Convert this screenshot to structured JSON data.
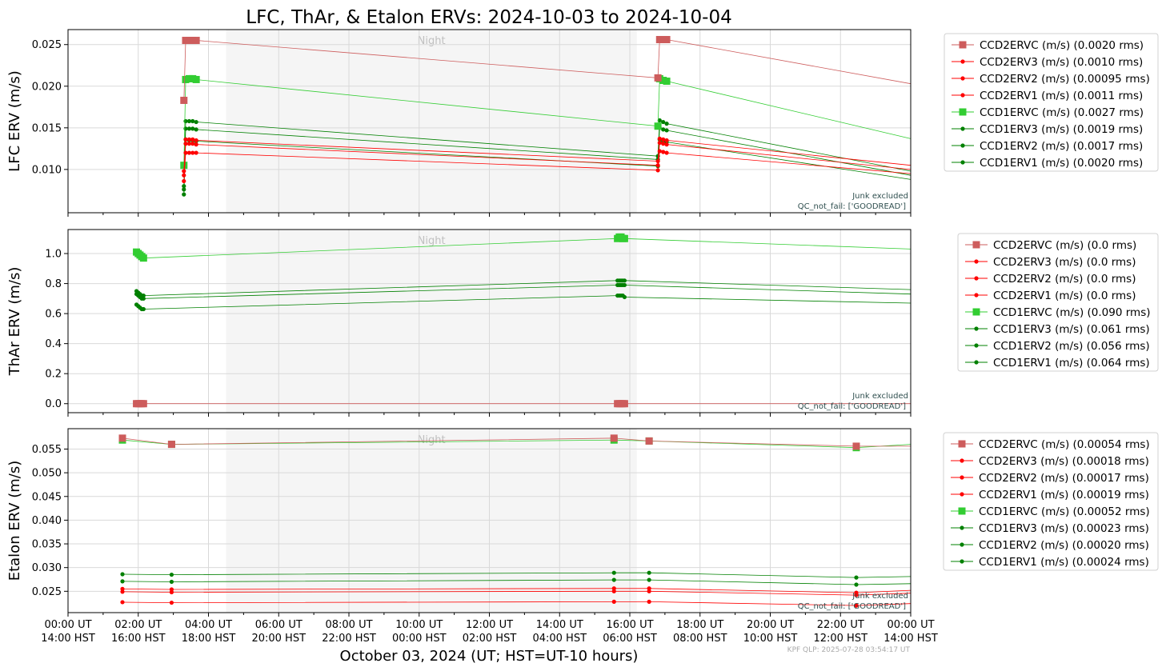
{
  "figure": {
    "title": "LFC, ThAr, & Etalon ERVs: 2024-10-03 to 2024-10-04",
    "xlabel": "October 03, 2024 (UT; HST=UT-10 hours)",
    "footer": "KPF QLP: 2025-07-28 03:54:17 UT",
    "night_label": "Night",
    "notes": [
      "Junk excluded",
      "QC_not_fail: ['GOODREAD']"
    ],
    "x_ticks": [
      {
        "ut": "00:00 UT",
        "hst": "14:00 HST"
      },
      {
        "ut": "02:00 UT",
        "hst": "16:00 HST"
      },
      {
        "ut": "04:00 UT",
        "hst": "18:00 HST"
      },
      {
        "ut": "06:00 UT",
        "hst": "20:00 HST"
      },
      {
        "ut": "08:00 UT",
        "hst": "22:00 HST"
      },
      {
        "ut": "10:00 UT",
        "hst": "00:00 HST"
      },
      {
        "ut": "12:00 UT",
        "hst": "02:00 HST"
      },
      {
        "ut": "14:00 UT",
        "hst": "04:00 HST"
      },
      {
        "ut": "16:00 UT",
        "hst": "06:00 HST"
      },
      {
        "ut": "18:00 UT",
        "hst": "08:00 HST"
      },
      {
        "ut": "20:00 UT",
        "hst": "10:00 HST"
      },
      {
        "ut": "22:00 UT",
        "hst": "12:00 HST"
      },
      {
        "ut": "00:00 UT",
        "hst": "14:00 HST"
      }
    ],
    "colors": {
      "ccd2": "#cd5c5c",
      "ccd2_dot": "#ff0000",
      "ccd1": "#32cd32",
      "ccd1_dot": "#008000",
      "night": "#f5f5f5",
      "grid": "#d9d9d9",
      "note": "#2f4f4f"
    }
  },
  "chart_data": [
    {
      "type": "line",
      "ylabel": "LFC ERV (m/s)",
      "xlim_hours_ut": [
        0,
        24
      ],
      "ylim": [
        0.0048,
        0.0268
      ],
      "y_ticks": [
        "0.010",
        "0.015",
        "0.020",
        "0.025"
      ],
      "y_tick_values": [
        0.01,
        0.015,
        0.02,
        0.025
      ],
      "night_hours_ut": [
        4.5,
        16.2
      ],
      "series": [
        {
          "name": "CCD2ERVC (m/s) (0.0020 rms)",
          "marker": "square",
          "x": [
            3.3,
            3.35,
            3.45,
            3.55,
            3.65,
            16.8,
            16.85,
            16.95,
            17.05,
            24.0
          ],
          "y": [
            0.0183,
            0.0255,
            0.0255,
            0.0255,
            0.0255,
            0.021,
            0.0256,
            0.0256,
            0.0256,
            0.0203
          ]
        },
        {
          "name": "CCD2ERV3 (m/s) (0.0010 rms)",
          "marker": "dot",
          "x": [
            3.3,
            3.35,
            3.45,
            3.55,
            3.65,
            16.8,
            16.85,
            16.95,
            17.05,
            24.0
          ],
          "y": [
            0.0098,
            0.0136,
            0.0136,
            0.0136,
            0.0135,
            0.011,
            0.0137,
            0.0136,
            0.0135,
            0.0105
          ]
        },
        {
          "name": "CCD2ERV2 (m/s) (0.00095 rms)",
          "marker": "dot",
          "x": [
            3.3,
            3.35,
            3.45,
            3.55,
            3.65,
            16.8,
            16.85,
            16.95,
            17.05,
            24.0
          ],
          "y": [
            0.0093,
            0.0131,
            0.0131,
            0.0131,
            0.013,
            0.0105,
            0.0132,
            0.0131,
            0.013,
            0.01
          ]
        },
        {
          "name": "CCD2ERV1 (m/s) (0.0011 rms)",
          "marker": "dot",
          "x": [
            3.3,
            3.35,
            3.45,
            3.55,
            3.65,
            16.8,
            16.85,
            16.95,
            17.05,
            24.0
          ],
          "y": [
            0.0086,
            0.012,
            0.012,
            0.012,
            0.012,
            0.0099,
            0.0122,
            0.0121,
            0.012,
            0.0095
          ]
        },
        {
          "name": "CCD1ERVC (m/s) (0.0027 rms)",
          "marker": "square",
          "x": [
            3.3,
            3.35,
            3.45,
            3.55,
            3.65,
            16.8,
            16.85,
            16.95,
            17.05,
            24.0
          ],
          "y": [
            0.0105,
            0.0208,
            0.0209,
            0.0209,
            0.0208,
            0.0152,
            0.0209,
            0.0207,
            0.0206,
            0.0137
          ]
        },
        {
          "name": "CCD1ERV3 (m/s) (0.0019 rms)",
          "marker": "dot",
          "x": [
            3.3,
            3.35,
            3.45,
            3.55,
            3.65,
            16.8,
            16.85,
            16.95,
            17.05,
            24.0
          ],
          "y": [
            0.008,
            0.0158,
            0.0158,
            0.0158,
            0.0157,
            0.0116,
            0.0159,
            0.0157,
            0.0155,
            0.0098
          ]
        },
        {
          "name": "CCD1ERV2 (m/s) (0.0017 rms)",
          "marker": "dot",
          "x": [
            3.3,
            3.35,
            3.45,
            3.55,
            3.65,
            16.8,
            16.85,
            16.95,
            17.05,
            24.0
          ],
          "y": [
            0.0076,
            0.0149,
            0.0149,
            0.0149,
            0.0148,
            0.0112,
            0.015,
            0.0148,
            0.0147,
            0.0093
          ]
        },
        {
          "name": "CCD1ERV1 (m/s) (0.0020 rms)",
          "marker": "dot",
          "x": [
            3.3,
            3.35,
            3.45,
            3.55,
            3.65,
            16.8,
            16.85,
            16.95,
            17.05,
            24.0
          ],
          "y": [
            0.007,
            0.0136,
            0.0135,
            0.0135,
            0.0134,
            0.0104,
            0.0136,
            0.0134,
            0.0133,
            0.0088
          ]
        }
      ]
    },
    {
      "type": "line",
      "ylabel": "ThAr ERV (m/s)",
      "xlim_hours_ut": [
        0,
        24
      ],
      "ylim": [
        -0.06,
        1.16
      ],
      "y_ticks": [
        "0.0",
        "0.2",
        "0.4",
        "0.6",
        "0.8",
        "1.0"
      ],
      "y_tick_values": [
        0.0,
        0.2,
        0.4,
        0.6,
        0.8,
        1.0
      ],
      "night_hours_ut": [
        4.5,
        16.2
      ],
      "series": [
        {
          "name": "CCD2ERVC (m/s) (0.0 rms)",
          "marker": "square",
          "x": [
            1.95,
            2.0,
            2.05,
            2.1,
            2.15,
            15.65,
            15.7,
            15.75,
            15.8,
            15.85,
            24.0
          ],
          "y": [
            0.0,
            0.0,
            0.0,
            0.0,
            0.0,
            0.0,
            0.0,
            0.0,
            0.0,
            0.0,
            0.0
          ]
        },
        {
          "name": "CCD2ERV3 (m/s) (0.0 rms)",
          "marker": "dot",
          "x": [],
          "y": []
        },
        {
          "name": "CCD2ERV2 (m/s) (0.0 rms)",
          "marker": "dot",
          "x": [],
          "y": []
        },
        {
          "name": "CCD2ERV1 (m/s) (0.0 rms)",
          "marker": "dot",
          "x": [],
          "y": []
        },
        {
          "name": "CCD1ERVC (m/s) (0.090 rms)",
          "marker": "square",
          "x": [
            1.95,
            2.0,
            2.05,
            2.1,
            2.15,
            15.65,
            15.7,
            15.75,
            15.8,
            15.85,
            24.0
          ],
          "y": [
            1.01,
            1.0,
            0.99,
            0.98,
            0.97,
            1.1,
            1.11,
            1.11,
            1.1,
            1.1,
            1.03
          ]
        },
        {
          "name": "CCD1ERV3 (m/s) (0.061 rms)",
          "marker": "dot",
          "x": [
            1.95,
            2.0,
            2.05,
            2.1,
            2.15,
            15.65,
            15.7,
            15.75,
            15.8,
            15.85,
            24.0
          ],
          "y": [
            0.75,
            0.74,
            0.73,
            0.72,
            0.72,
            0.82,
            0.82,
            0.82,
            0.82,
            0.82,
            0.76
          ]
        },
        {
          "name": "CCD1ERV2 (m/s) (0.056 rms)",
          "marker": "dot",
          "x": [
            1.95,
            2.0,
            2.05,
            2.1,
            2.15,
            15.65,
            15.7,
            15.75,
            15.8,
            15.85,
            24.0
          ],
          "y": [
            0.73,
            0.72,
            0.71,
            0.7,
            0.7,
            0.79,
            0.79,
            0.79,
            0.79,
            0.79,
            0.73
          ]
        },
        {
          "name": "CCD1ERV1 (m/s) (0.064 rms)",
          "marker": "dot",
          "x": [
            1.95,
            2.0,
            2.05,
            2.1,
            2.15,
            15.65,
            15.7,
            15.75,
            15.8,
            15.85,
            24.0
          ],
          "y": [
            0.66,
            0.65,
            0.64,
            0.63,
            0.63,
            0.72,
            0.72,
            0.72,
            0.72,
            0.71,
            0.67
          ]
        }
      ]
    },
    {
      "type": "line",
      "ylabel": "Etalon ERV (m/s)",
      "xlim_hours_ut": [
        0,
        24
      ],
      "ylim": [
        0.0205,
        0.0593
      ],
      "y_ticks": [
        "0.025",
        "0.030",
        "0.035",
        "0.040",
        "0.045",
        "0.050",
        "0.055"
      ],
      "y_tick_values": [
        0.025,
        0.03,
        0.035,
        0.04,
        0.045,
        0.05,
        0.055
      ],
      "night_hours_ut": [
        4.5,
        16.2
      ],
      "series": [
        {
          "name": "CCD2ERVC (m/s) (0.00054 rms)",
          "marker": "square",
          "x": [
            1.55,
            2.95,
            15.55,
            16.55,
            22.45,
            24.0
          ],
          "y": [
            0.0573,
            0.056,
            0.0573,
            0.0567,
            0.0556,
            0.0556
          ]
        },
        {
          "name": "CCD2ERV3 (m/s) (0.00018 rms)",
          "marker": "dot",
          "x": [
            1.55,
            2.95,
            15.55,
            16.55,
            22.45,
            24.0
          ],
          "y": [
            0.0255,
            0.0254,
            0.0256,
            0.0256,
            0.0247,
            0.0252
          ]
        },
        {
          "name": "CCD2ERV2 (m/s) (0.00017 rms)",
          "marker": "dot",
          "x": [
            1.55,
            2.95,
            15.55,
            16.55,
            22.45,
            24.0
          ],
          "y": [
            0.0249,
            0.0248,
            0.025,
            0.025,
            0.0242,
            0.0246
          ]
        },
        {
          "name": "CCD2ERV1 (m/s) (0.00019 rms)",
          "marker": "dot",
          "x": [
            1.55,
            2.95,
            15.55,
            16.55,
            22.45,
            24.0
          ],
          "y": [
            0.0227,
            0.0226,
            0.0228,
            0.0228,
            0.022,
            0.0224
          ]
        },
        {
          "name": "CCD1ERVC (m/s) (0.00052 rms)",
          "marker": "square",
          "x": [
            1.55,
            2.95,
            15.55,
            16.55,
            22.45,
            24.0
          ],
          "y": [
            0.0569,
            0.056,
            0.0569,
            0.0567,
            0.0553,
            0.056
          ]
        },
        {
          "name": "CCD1ERV3 (m/s) (0.00023 rms)",
          "marker": "dot",
          "x": [
            1.55,
            2.95,
            15.55,
            16.55,
            22.45,
            24.0
          ],
          "y": [
            0.0286,
            0.0285,
            0.0289,
            0.0289,
            0.0279,
            0.0281
          ]
        },
        {
          "name": "CCD1ERV2 (m/s) (0.00020 rms)",
          "marker": "dot",
          "x": [
            1.55,
            2.95,
            15.55,
            16.55,
            22.45,
            24.0
          ],
          "y": [
            0.0271,
            0.027,
            0.0274,
            0.0274,
            0.0264,
            0.0266
          ]
        },
        {
          "name": "CCD1ERV1 (m/s) (0.00024 rms)",
          "marker": "dot",
          "x": [],
          "y": []
        }
      ]
    }
  ]
}
